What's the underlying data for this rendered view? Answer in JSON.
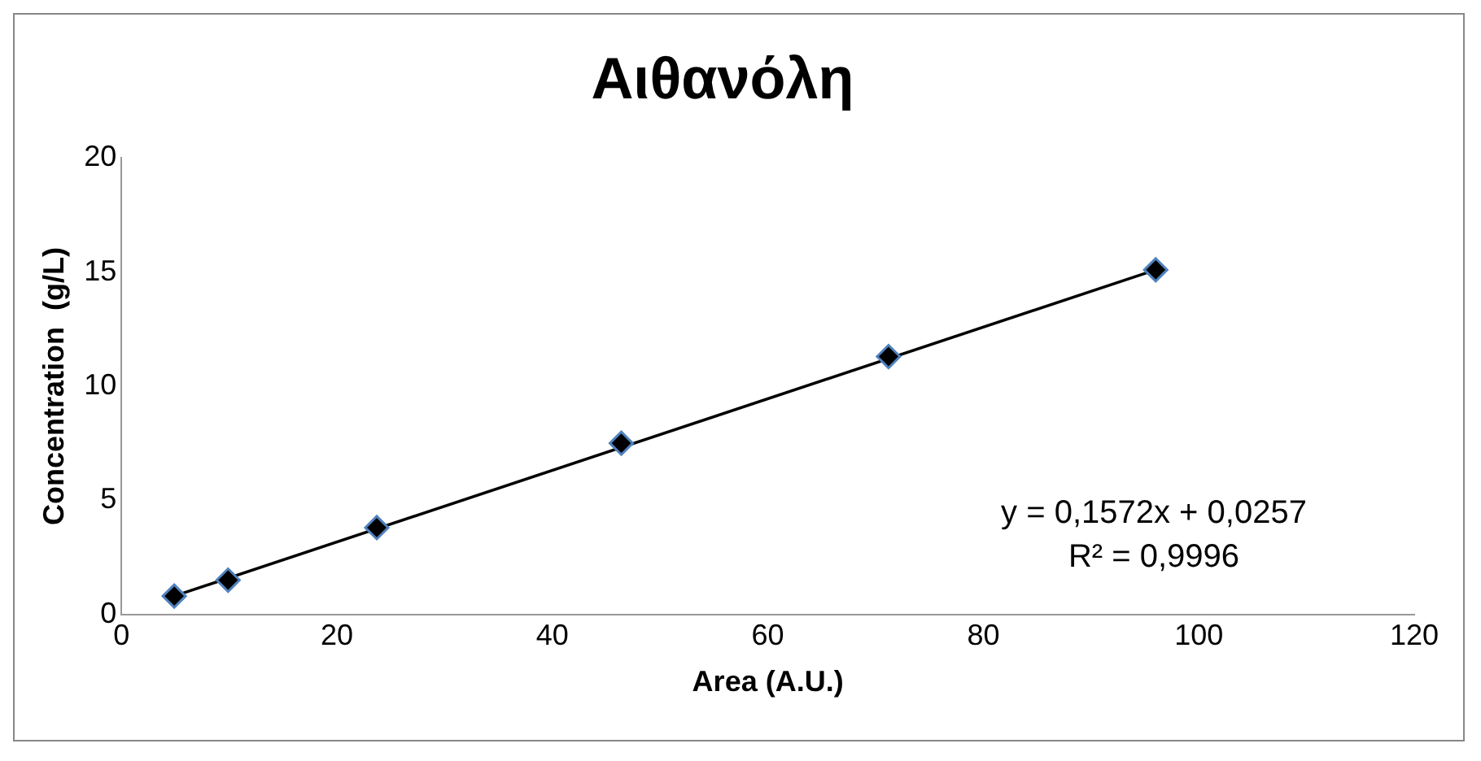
{
  "chart_data": {
    "type": "scatter",
    "title": "Αιθανόλη",
    "xlabel": "Area (A.U.)",
    "ylabel": "Concentration  (g/L)",
    "xlim": [
      0,
      120
    ],
    "xticks": [
      0,
      20,
      40,
      60,
      80,
      100,
      120
    ],
    "ylim": [
      0,
      20
    ],
    "yticks": [
      0,
      5,
      10,
      15,
      20
    ],
    "grid": false,
    "legend": false,
    "series": [
      {
        "marker": "diamond",
        "color": "#000000",
        "x": [
          4.9,
          9.9,
          23.7,
          46.4,
          71.2,
          96.0
        ],
        "values": [
          0.8,
          1.5,
          3.8,
          7.5,
          11.3,
          15.1
        ]
      },
      {
        "type": "line",
        "marker": "none",
        "color": "#000000",
        "x": [
          4.9,
          96.0
        ],
        "values": [
          0.8,
          15.1
        ]
      }
    ],
    "annotations": [
      "y = 0,1572x + 0,0257",
      "R² = 0,9996"
    ]
  }
}
